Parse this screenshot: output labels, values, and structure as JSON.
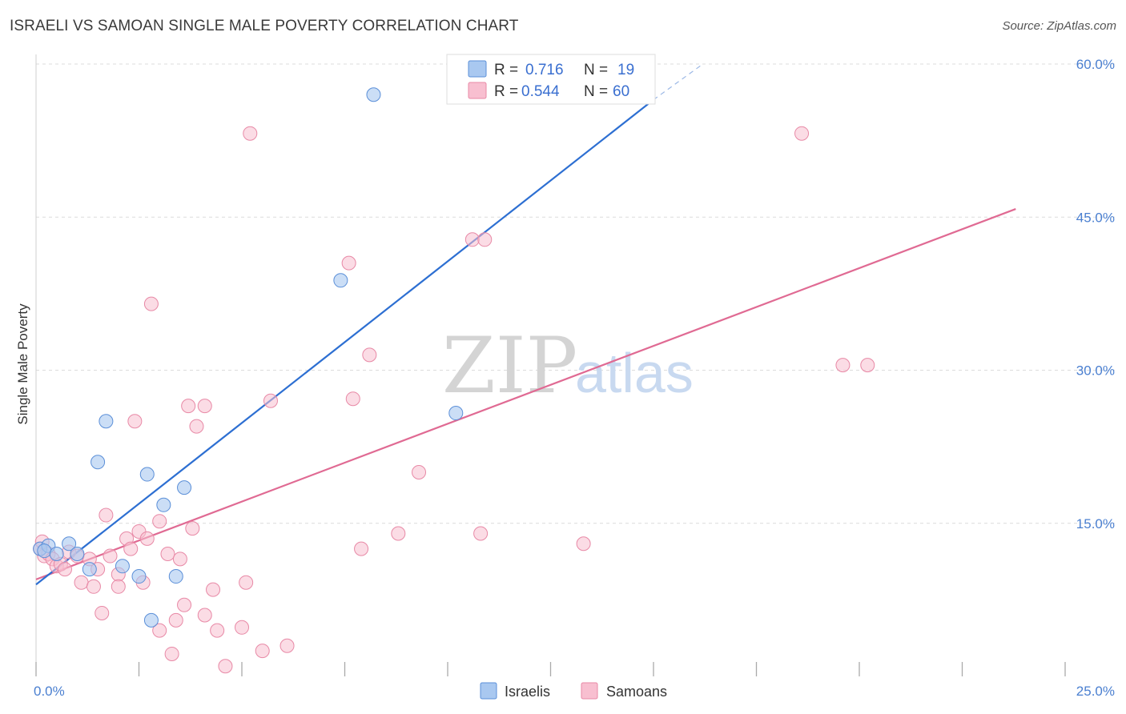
{
  "title": "ISRAELI VS SAMOAN SINGLE MALE POVERTY CORRELATION CHART",
  "source": "Source: ZipAtlas.com",
  "watermark": {
    "zip": "ZIP",
    "atlas": "atlas"
  },
  "legend": {
    "r_label": "R =",
    "n_label": "N =",
    "israelis": {
      "r": "0.716",
      "n": "19"
    },
    "samoans": {
      "r": "0.544",
      "n": "60"
    }
  },
  "colors": {
    "israelis_fill": "#a9c8f0",
    "israelis_stroke": "#5b8fd8",
    "israelis_line": "#2d6fd2",
    "samoans_fill": "#f8bfd0",
    "samoans_stroke": "#e889a6",
    "samoans_line": "#e06a93",
    "grid": "#dcdcdc",
    "tick": "#4a7fd0"
  },
  "chart_data": {
    "type": "scatter",
    "title": "ISRAELI VS SAMOAN SINGLE MALE POVERTY CORRELATION CHART",
    "xlabel": "",
    "ylabel": "Single Male Poverty",
    "xlim": [
      0,
      25
    ],
    "ylim": [
      0,
      60
    ],
    "x_tick_labels": {
      "left": "0.0%",
      "right": "25.0%"
    },
    "y_ticks": [
      15,
      30,
      45,
      60
    ],
    "y_tick_labels": [
      "15.0%",
      "30.0%",
      "45.0%",
      "60.0%"
    ],
    "series": [
      {
        "name": "Israelis",
        "points": [
          [
            0.1,
            12.5
          ],
          [
            0.3,
            12.8
          ],
          [
            0.8,
            13.0
          ],
          [
            1.0,
            12.0
          ],
          [
            1.3,
            10.5
          ],
          [
            1.5,
            21.0
          ],
          [
            1.7,
            25.0
          ],
          [
            2.1,
            10.8
          ],
          [
            2.5,
            9.8
          ],
          [
            2.7,
            19.8
          ],
          [
            2.8,
            5.5
          ],
          [
            3.1,
            16.8
          ],
          [
            3.4,
            9.8
          ],
          [
            3.6,
            18.5
          ],
          [
            7.4,
            38.8
          ],
          [
            8.2,
            57.0
          ],
          [
            10.2,
            25.8
          ],
          [
            0.2,
            12.3
          ],
          [
            0.5,
            12.0
          ]
        ],
        "trend": {
          "x0": 0,
          "y0": 9.0,
          "x1": 15.0,
          "y1": 56.5,
          "dash_x1": 16.2,
          "dash_y1": 60.0
        }
      },
      {
        "name": "Samoans",
        "points": [
          [
            0.1,
            12.5
          ],
          [
            0.2,
            11.8
          ],
          [
            0.3,
            12.0
          ],
          [
            0.4,
            11.5
          ],
          [
            0.5,
            10.8
          ],
          [
            0.6,
            11.0
          ],
          [
            0.7,
            10.5
          ],
          [
            0.8,
            12.2
          ],
          [
            1.0,
            11.8
          ],
          [
            1.1,
            9.2
          ],
          [
            1.3,
            11.5
          ],
          [
            1.4,
            8.8
          ],
          [
            1.5,
            10.5
          ],
          [
            1.6,
            6.2
          ],
          [
            1.7,
            15.8
          ],
          [
            1.8,
            11.8
          ],
          [
            2.0,
            10.0
          ],
          [
            2.0,
            8.8
          ],
          [
            2.2,
            13.5
          ],
          [
            2.3,
            12.5
          ],
          [
            2.4,
            25.0
          ],
          [
            2.5,
            14.2
          ],
          [
            2.6,
            9.2
          ],
          [
            2.7,
            13.5
          ],
          [
            2.8,
            36.5
          ],
          [
            3.0,
            4.5
          ],
          [
            3.0,
            15.2
          ],
          [
            3.2,
            12.0
          ],
          [
            3.3,
            2.2
          ],
          [
            3.4,
            5.5
          ],
          [
            3.5,
            11.5
          ],
          [
            3.6,
            7.0
          ],
          [
            3.7,
            26.5
          ],
          [
            3.8,
            14.5
          ],
          [
            3.9,
            24.5
          ],
          [
            4.1,
            26.5
          ],
          [
            4.1,
            6.0
          ],
          [
            4.3,
            8.5
          ],
          [
            4.4,
            4.5
          ],
          [
            4.6,
            1.0
          ],
          [
            5.0,
            4.8
          ],
          [
            5.1,
            9.2
          ],
          [
            5.5,
            2.5
          ],
          [
            5.7,
            27.0
          ],
          [
            6.1,
            3.0
          ],
          [
            5.2,
            53.2
          ],
          [
            7.6,
            40.5
          ],
          [
            7.7,
            27.2
          ],
          [
            7.9,
            12.5
          ],
          [
            8.1,
            31.5
          ],
          [
            8.8,
            14.0
          ],
          [
            9.3,
            20.0
          ],
          [
            10.6,
            42.8
          ],
          [
            10.8,
            14.0
          ],
          [
            10.9,
            42.8
          ],
          [
            13.3,
            13.0
          ],
          [
            18.6,
            53.2
          ],
          [
            19.6,
            30.5
          ],
          [
            20.2,
            30.5
          ],
          [
            0.15,
            13.2
          ]
        ],
        "trend": {
          "x0": 0,
          "y0": 9.5,
          "x1": 23.8,
          "y1": 45.8
        }
      }
    ]
  },
  "bottom_legend": {
    "israelis": "Israelis",
    "samoans": "Samoans"
  }
}
